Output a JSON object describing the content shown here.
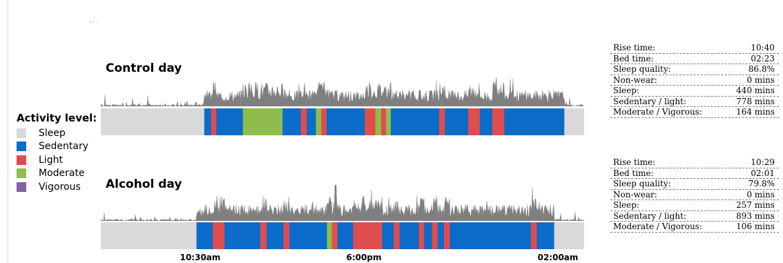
{
  "ticks_text": "' ` `",
  "colors": {
    "sleep": "#d9d9d9",
    "sedentary": "#0b6cc9",
    "light": "#e04d4f",
    "moderate": "#8ebd4b",
    "vigorous": "#8064a2",
    "trace": "#7f7f7f"
  },
  "legend": {
    "title": "Activity level:",
    "items": [
      {
        "label": "Sleep",
        "color": "#d9d9d9"
      },
      {
        "label": "Sedentary",
        "color": "#0b6cc9"
      },
      {
        "label": "Light",
        "color": "#e04d4f"
      },
      {
        "label": "Moderate",
        "color": "#8ebd4b"
      },
      {
        "label": "Vigorous",
        "color": "#8064a2"
      }
    ]
  },
  "x_axis": {
    "labels": [
      "10:30am",
      "6:00pm",
      "02:00am"
    ]
  },
  "chart_data": {
    "type": "timeline",
    "x_unit": "fraction of recording window",
    "categories_legend": [
      "Sleep",
      "Sedentary",
      "Light",
      "Moderate",
      "Vigorous"
    ],
    "panels": [
      {
        "title": "Control day",
        "segments": [
          {
            "start": 0.0,
            "end": 0.214,
            "level": "sleep"
          },
          {
            "start": 0.214,
            "end": 0.228,
            "level": "sedentary"
          },
          {
            "start": 0.228,
            "end": 0.239,
            "level": "light"
          },
          {
            "start": 0.239,
            "end": 0.294,
            "level": "sedentary"
          },
          {
            "start": 0.294,
            "end": 0.376,
            "level": "moderate"
          },
          {
            "start": 0.376,
            "end": 0.414,
            "level": "sedentary"
          },
          {
            "start": 0.414,
            "end": 0.426,
            "level": "light"
          },
          {
            "start": 0.426,
            "end": 0.445,
            "level": "sedentary"
          },
          {
            "start": 0.445,
            "end": 0.456,
            "level": "moderate"
          },
          {
            "start": 0.456,
            "end": 0.467,
            "level": "light"
          },
          {
            "start": 0.467,
            "end": 0.546,
            "level": "sedentary"
          },
          {
            "start": 0.546,
            "end": 0.568,
            "level": "light"
          },
          {
            "start": 0.568,
            "end": 0.58,
            "level": "moderate"
          },
          {
            "start": 0.58,
            "end": 0.59,
            "level": "light"
          },
          {
            "start": 0.59,
            "end": 0.6,
            "level": "moderate"
          },
          {
            "start": 0.6,
            "end": 0.7,
            "level": "sedentary"
          },
          {
            "start": 0.7,
            "end": 0.712,
            "level": "light"
          },
          {
            "start": 0.712,
            "end": 0.76,
            "level": "sedentary"
          },
          {
            "start": 0.76,
            "end": 0.784,
            "level": "light"
          },
          {
            "start": 0.784,
            "end": 0.81,
            "level": "sedentary"
          },
          {
            "start": 0.81,
            "end": 0.835,
            "level": "light"
          },
          {
            "start": 0.835,
            "end": 0.959,
            "level": "sedentary"
          },
          {
            "start": 0.959,
            "end": 1.0,
            "level": "sleep"
          }
        ],
        "stats": [
          {
            "label": "Rise time:",
            "value": "10:40"
          },
          {
            "label": "Bed time:",
            "value": "02:23"
          },
          {
            "label": "Sleep quality:",
            "value": "86.8%"
          },
          {
            "label": "Non-wear:",
            "value": "0 mins"
          },
          {
            "label": "Sleep:",
            "value": "440 mins"
          },
          {
            "label": "Sedentary / light:",
            "value": "778 mins"
          },
          {
            "label": "Moderate / Vigorous:",
            "value": "164 mins"
          }
        ]
      },
      {
        "title": "Alcohol day",
        "segments": [
          {
            "start": 0.0,
            "end": 0.198,
            "level": "sleep"
          },
          {
            "start": 0.198,
            "end": 0.232,
            "level": "sedentary"
          },
          {
            "start": 0.232,
            "end": 0.256,
            "level": "light"
          },
          {
            "start": 0.256,
            "end": 0.33,
            "level": "sedentary"
          },
          {
            "start": 0.33,
            "end": 0.343,
            "level": "light"
          },
          {
            "start": 0.343,
            "end": 0.378,
            "level": "sedentary"
          },
          {
            "start": 0.378,
            "end": 0.39,
            "level": "light"
          },
          {
            "start": 0.39,
            "end": 0.468,
            "level": "sedentary"
          },
          {
            "start": 0.468,
            "end": 0.478,
            "level": "moderate"
          },
          {
            "start": 0.478,
            "end": 0.49,
            "level": "light"
          },
          {
            "start": 0.49,
            "end": 0.522,
            "level": "sedentary"
          },
          {
            "start": 0.522,
            "end": 0.582,
            "level": "light"
          },
          {
            "start": 0.582,
            "end": 0.606,
            "level": "sedentary"
          },
          {
            "start": 0.606,
            "end": 0.618,
            "level": "light"
          },
          {
            "start": 0.618,
            "end": 0.658,
            "level": "sedentary"
          },
          {
            "start": 0.658,
            "end": 0.669,
            "level": "light"
          },
          {
            "start": 0.669,
            "end": 0.685,
            "level": "sedentary"
          },
          {
            "start": 0.685,
            "end": 0.697,
            "level": "light"
          },
          {
            "start": 0.697,
            "end": 0.71,
            "level": "sedentary"
          },
          {
            "start": 0.71,
            "end": 0.722,
            "level": "light"
          },
          {
            "start": 0.722,
            "end": 0.89,
            "level": "sedentary"
          },
          {
            "start": 0.89,
            "end": 0.902,
            "level": "light"
          },
          {
            "start": 0.902,
            "end": 0.938,
            "level": "sedentary"
          },
          {
            "start": 0.938,
            "end": 1.0,
            "level": "sleep"
          }
        ],
        "stats": [
          {
            "label": "Rise time:",
            "value": "10:29"
          },
          {
            "label": "Bed time:",
            "value": "02:01"
          },
          {
            "label": "Sleep quality:",
            "value": "79.8%"
          },
          {
            "label": "Non-wear:",
            "value": "0 mins"
          },
          {
            "label": "Sleep:",
            "value": "257 mins"
          },
          {
            "label": "Sedentary / light:",
            "value": "893 mins"
          },
          {
            "label": "Moderate / Vigorous:",
            "value": "106 mins"
          }
        ]
      }
    ]
  }
}
